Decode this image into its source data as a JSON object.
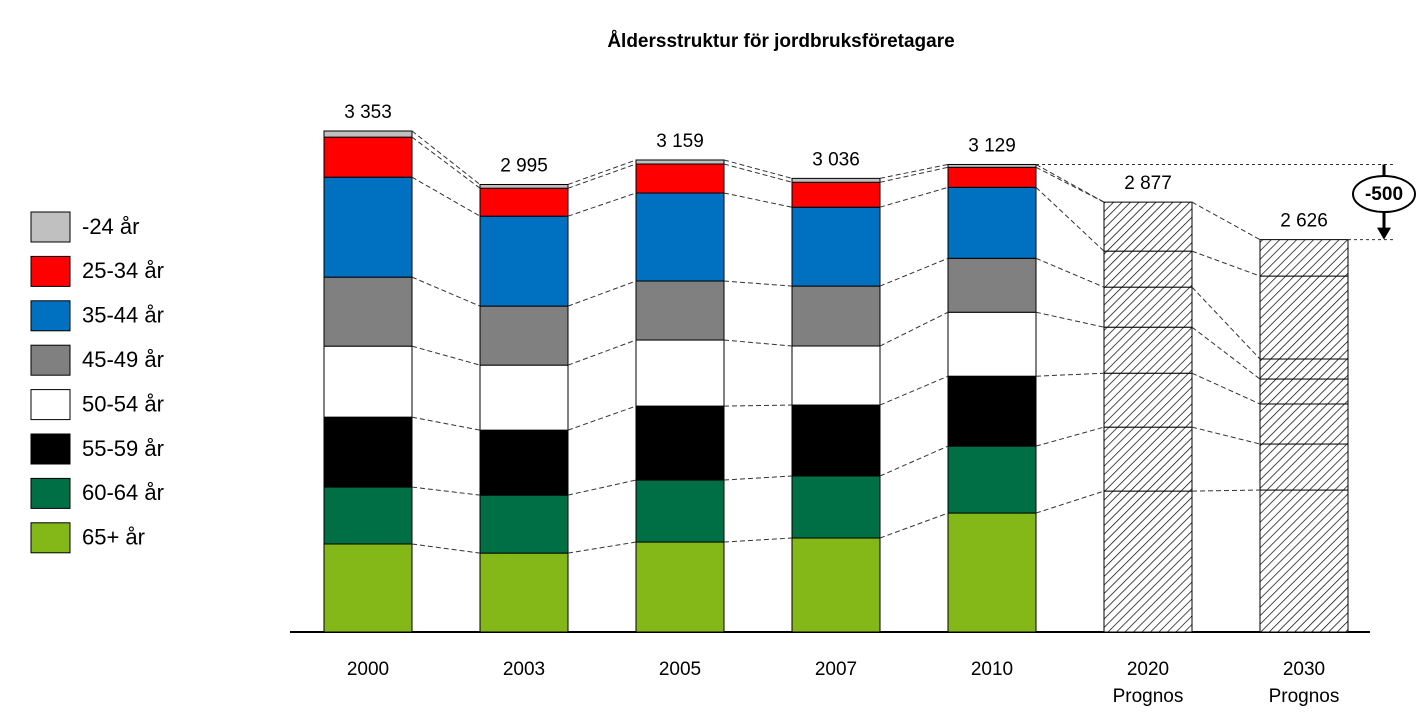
{
  "chart_data": {
    "type": "stacked-bar",
    "title": "Åldersstruktur för jordbruksföretagare",
    "categories": [
      "2000",
      "2003",
      "2005",
      "2007",
      "2010",
      "2020",
      "2030"
    ],
    "category_notes": [
      null,
      null,
      null,
      null,
      null,
      "Prognos",
      "Prognos"
    ],
    "hatched": [
      false,
      false,
      false,
      false,
      false,
      true,
      true
    ],
    "totals": [
      3353,
      2995,
      3159,
      3036,
      3129,
      2877,
      2626
    ],
    "total_labels": [
      "3 353",
      "2 995",
      "3 159",
      "3 036",
      "3 129",
      "2 877",
      "2 626"
    ],
    "series": [
      {
        "name": "-24 år",
        "color": "#c0c0c0",
        "values": [
          41,
          25,
          27,
          26,
          19,
          null,
          null
        ]
      },
      {
        "name": "25-34 år",
        "color": "#ff0000",
        "values": [
          268,
          187,
          194,
          167,
          134,
          328,
          244
        ]
      },
      {
        "name": "35-44 år",
        "color": "#0070c0",
        "values": [
          669,
          602,
          589,
          528,
          475,
          241,
          555
        ]
      },
      {
        "name": "45-49 år",
        "color": "#808080",
        "values": [
          462,
          395,
          395,
          401,
          361,
          268,
          134
        ]
      },
      {
        "name": "50-54 år",
        "color": "#ffffff",
        "values": [
          475,
          435,
          442,
          395,
          428,
          308,
          167
        ]
      },
      {
        "name": "55-59 år",
        "color": "#000000",
        "values": [
          468,
          435,
          495,
          475,
          468,
          361,
          268
        ]
      },
      {
        "name": "60-64 år",
        "color": "#006f46",
        "values": [
          381,
          388,
          415,
          415,
          448,
          428,
          308
        ]
      },
      {
        "name": "65+ år",
        "color": "#84b819",
        "values": [
          589,
          528,
          602,
          629,
          796,
          943,
          950
        ]
      }
    ],
    "annotation": "-500"
  }
}
